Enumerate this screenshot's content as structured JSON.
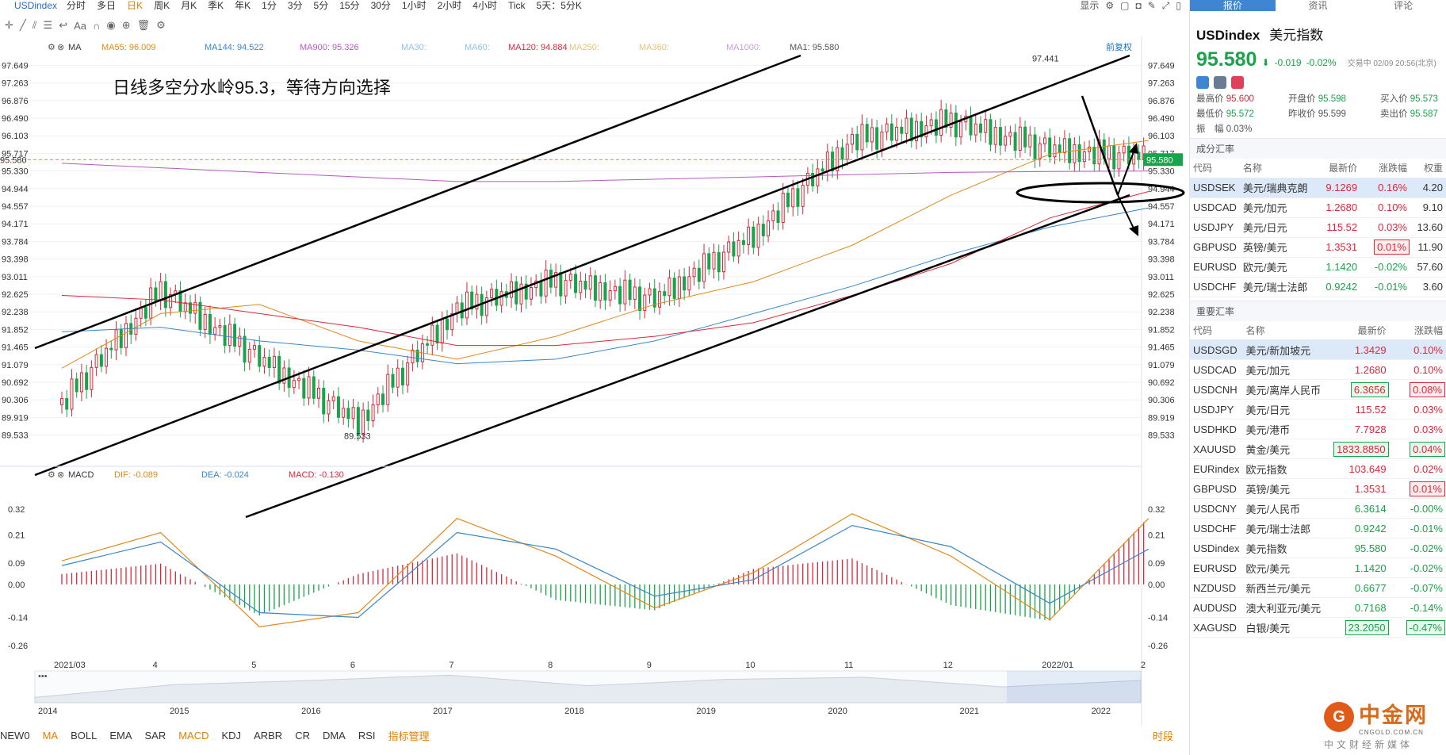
{
  "topbar": {
    "symbol": "USDindex",
    "periods": [
      "分时",
      "多日",
      "日K",
      "周K",
      "月K",
      "季K",
      "年K",
      "1分",
      "3分",
      "5分",
      "15分",
      "30分",
      "1小时",
      "2小时",
      "4小时",
      "Tick",
      "5天：5分K"
    ],
    "active_period": "日K",
    "display_label": "显示"
  },
  "indicator_bar": {
    "ma_label": "MA",
    "items": [
      {
        "label": "MA55: 96.009",
        "color": "#e08a1a"
      },
      {
        "label": "MA144: 94.522",
        "color": "#3a86c8"
      },
      {
        "label": "MA900: 95.326",
        "color": "#b55bbd"
      },
      {
        "label": "MA30:",
        "color": "#8fc1ec"
      },
      {
        "label": "MA60:",
        "color": "#8fc1ec"
      },
      {
        "label": "MA120: 94.884",
        "color": "#d9283a"
      },
      {
        "label": "MA250:",
        "color": "#e5c37a"
      },
      {
        "label": "MA360:",
        "color": "#e5c37a"
      },
      {
        "label": "MA1000:",
        "color": "#c9a0d8"
      },
      {
        "label": "MA1: 95.580",
        "color": "#555555"
      }
    ],
    "adjust_label": "前复权"
  },
  "annotation": {
    "text": "日线多空分水岭95.3，等待方向选择"
  },
  "chart_data": [
    {
      "type": "line",
      "name": "USDindex daily candlestick",
      "yticks": [
        97.649,
        97.263,
        96.876,
        96.49,
        96.103,
        95.717,
        95.33,
        94.944,
        94.557,
        94.171,
        93.784,
        93.398,
        93.011,
        92.625,
        92.238,
        91.852,
        91.465,
        91.079,
        90.692,
        90.306,
        89.919,
        89.533
      ],
      "ylim": [
        89.3,
        97.9
      ],
      "xticks": [
        "2021/03",
        "4",
        "5",
        "6",
        "7",
        "8",
        "9",
        "10",
        "11",
        "12",
        "2022/01",
        "2"
      ],
      "last_price": 95.58,
      "high_label": 97.441,
      "low_label": 89.533,
      "x": [
        "2021/03",
        "4",
        "5",
        "6",
        "7",
        "8",
        "9",
        "10",
        "11",
        "12",
        "2022/01",
        "2"
      ],
      "series": [
        {
          "values": [
            90.2,
            92.7,
            91.2,
            89.8,
            92.3,
            92.9,
            92.5,
            93.9,
            96.0,
            96.4,
            95.8,
            95.6
          ]
        }
      ],
      "mas": [
        {
          "values": [
            91.0,
            92.2,
            92.4,
            91.6,
            91.2,
            91.7,
            92.4,
            92.9,
            93.7,
            94.8,
            95.7,
            96.0
          ]
        },
        {
          "values": [
            91.8,
            91.9,
            91.6,
            91.4,
            91.1,
            91.2,
            91.6,
            92.2,
            92.8,
            93.5,
            94.1,
            94.52
          ]
        },
        {
          "values": [
            92.6,
            92.5,
            92.2,
            91.9,
            91.5,
            91.5,
            91.7,
            92.0,
            92.6,
            93.3,
            94.3,
            94.88
          ]
        },
        {
          "values": [
            95.5,
            95.4,
            95.3,
            95.2,
            95.1,
            95.1,
            95.15,
            95.2,
            95.25,
            95.3,
            95.32,
            95.33
          ]
        }
      ]
    },
    {
      "type": "bar",
      "name": "MACD",
      "ylim": [
        -0.3,
        0.38
      ],
      "yticks": [
        0.32,
        0.21,
        0.09,
        0.0,
        -0.14,
        -0.26
      ],
      "legend": {
        "dif": "DIF: -0.089",
        "dea": "DEA: -0.024",
        "macd": "MACD: -0.130"
      },
      "x": [
        "2021/03",
        "4",
        "5",
        "6",
        "7",
        "8",
        "9",
        "10",
        "11",
        "12",
        "2022/01",
        "2"
      ],
      "series": [
        {
          "values": [
            0.1,
            0.22,
            -0.18,
            -0.12,
            0.28,
            0.12,
            -0.1,
            0.05,
            0.3,
            0.12,
            -0.15,
            0.28
          ]
        },
        {
          "values": [
            0.08,
            0.18,
            -0.12,
            -0.14,
            0.22,
            0.15,
            -0.05,
            0.02,
            0.25,
            0.16,
            -0.08,
            0.15
          ]
        }
      ]
    },
    {
      "type": "area",
      "name": "history navigator",
      "xticks": [
        "2014",
        "2015",
        "2016",
        "2017",
        "2018",
        "2019",
        "2020",
        "2021",
        "2022"
      ],
      "x": [
        "2014",
        "2015",
        "2016",
        "2017",
        "2018",
        "2019",
        "2020",
        "2021",
        "2022"
      ],
      "values": [
        80,
        92,
        96,
        101,
        91,
        97,
        99,
        90,
        96
      ]
    }
  ],
  "bottom_bar": {
    "items": [
      "NEW0",
      "MA",
      "BOLL",
      "EMA",
      "SAR",
      "MACD",
      "KDJ",
      "ARBR",
      "CR",
      "DMA",
      "RSI",
      "指标管理"
    ],
    "active": [
      "MA",
      "MACD",
      "指标管理"
    ],
    "right": "时段"
  },
  "panel": {
    "tabs": [
      "报价",
      "资讯",
      "评论"
    ],
    "symbol": "USDindex",
    "name": "美元指数",
    "price": "95.580",
    "change": "-0.019",
    "change_pct": "-0.02%",
    "time": "交易中 02/09 20:56(北京)",
    "stats": [
      [
        "最高价",
        "95.600",
        "up"
      ],
      [
        "开盘价",
        "95.598",
        "dn"
      ],
      [
        "买入价",
        "95.573",
        "dn"
      ],
      [
        "最低价",
        "95.572",
        "dn"
      ],
      [
        "昨收价",
        "95.599",
        ""
      ],
      [
        "卖出价",
        "95.587",
        "dn"
      ],
      [
        "振　幅",
        "0.03%",
        ""
      ]
    ],
    "comp_title": "成分汇率",
    "headers": [
      "代码",
      "名称",
      "最新价",
      "涨跌幅",
      "权重"
    ],
    "comp": [
      [
        "USDSEK",
        "美元/瑞典克朗",
        "9.1269",
        "0.16%",
        "4.20"
      ],
      [
        "USDCAD",
        "美元/加元",
        "1.2680",
        "0.10%",
        "9.10"
      ],
      [
        "USDJPY",
        "美元/日元",
        "115.52",
        "0.03%",
        "13.60"
      ],
      [
        "GBPUSD",
        "英镑/美元",
        "1.3531",
        "0.01%",
        "11.90"
      ],
      [
        "EURUSD",
        "欧元/美元",
        "1.1420",
        "-0.02%",
        "57.60"
      ],
      [
        "USDCHF",
        "美元/瑞士法郎",
        "0.9242",
        "-0.01%",
        "3.60"
      ]
    ],
    "major_title": "重要汇率",
    "major": [
      [
        "USDSGD",
        "美元/新加坡元",
        "1.3429",
        "0.10%"
      ],
      [
        "USDCAD",
        "美元/加元",
        "1.2680",
        "0.10%"
      ],
      [
        "USDCNH",
        "美元/离岸人民币",
        "6.3656",
        "0.08%"
      ],
      [
        "USDJPY",
        "美元/日元",
        "115.52",
        "0.03%"
      ],
      [
        "USDHKD",
        "美元/港币",
        "7.7928",
        "0.03%"
      ],
      [
        "XAUUSD",
        "黄金/美元",
        "1833.8850",
        "0.04%"
      ],
      [
        "EURindex",
        "欧元指数",
        "103.649",
        "0.02%"
      ],
      [
        "GBPUSD",
        "英镑/美元",
        "1.3531",
        "0.01%"
      ],
      [
        "USDCNY",
        "美元/人民币",
        "6.3614",
        "-0.00%"
      ],
      [
        "USDCHF",
        "美元/瑞士法郎",
        "0.9242",
        "-0.01%"
      ],
      [
        "USDindex",
        "美元指数",
        "95.580",
        "-0.02%"
      ],
      [
        "EURUSD",
        "欧元/美元",
        "1.1420",
        "-0.02%"
      ],
      [
        "NZDUSD",
        "新西兰元/美元",
        "0.6677",
        "-0.07%"
      ],
      [
        "AUDUSD",
        "澳大利亚元/美元",
        "0.7168",
        "-0.14%"
      ],
      [
        "XAGUSD",
        "白银/美元",
        "23.2050",
        "-0.47%"
      ]
    ]
  },
  "logo": {
    "cn": "中金网",
    "en": "CNGOLD.COM.CN",
    "tag": "中文财经新媒体"
  }
}
